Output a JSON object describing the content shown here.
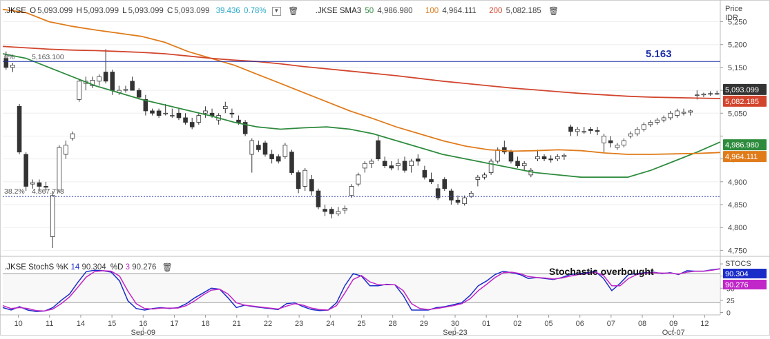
{
  "colors": {
    "candle_up": "#ffffff",
    "candle_down": "#333333",
    "sma50": "#2e8b3d",
    "sma100": "#e07b1a",
    "sma200": "#d2452d",
    "fib_line": "#1f2fa8",
    "fib_dotted": "#3d4db0",
    "stoch_k": "#1a2cc8",
    "stoch_d": "#c026c8",
    "stoch_level": "#555555"
  },
  "legend": {
    "symbol": ".JKSE",
    "open_label": "O",
    "open": "5,093.099",
    "high_label": "H",
    "high": "5,093.099",
    "low_label": "L",
    "low": "5,093.099",
    "close_label": "C",
    "close": "5,093.099",
    "change": "39.436",
    "change_pct": "0.78%",
    "sma_symbol": ".JKSE SMA3",
    "sma_p1": "50",
    "sma_v1": "4,986.980",
    "sma_p2": "100",
    "sma_v2": "4,964.111",
    "sma_p3": "200",
    "sma_v3": "5,082.185",
    "collapse_icon": "chevron-down-icon",
    "delete_icon": "trash-icon"
  },
  "stoch_legend": {
    "name": ".JKSE StochS %K",
    "k_period": "14",
    "k_value": "90.304",
    "d_label": "%D",
    "d_period": "3",
    "d_value": "90.276",
    "delete_icon": "trash-icon"
  },
  "chart_data": [
    {
      "type": "candlestick",
      "title": "",
      "yaxis_title": "Price",
      "yaxis_unit": "IDR",
      "ylim": [
        4740,
        5290
      ],
      "y_ticks": [
        4750,
        4800,
        4850,
        4900,
        4950,
        5000,
        5050,
        5100,
        5150,
        5200,
        5250
      ],
      "y_tick_labels": [
        "4,750",
        "4,800",
        "4,850",
        "4,900",
        "4,950",
        "",
        "5,050",
        "5,100",
        "5,150",
        "5,200",
        "5,250"
      ],
      "x_tick_labels": [
        "10",
        "11",
        "14",
        "15",
        "16",
        "17",
        "18",
        "21",
        "22",
        "23",
        "24",
        "25",
        "28",
        "29",
        "30",
        "01",
        "02",
        "05",
        "06",
        "07",
        "08",
        "09",
        "12"
      ],
      "x_month_labels": [
        {
          "after_tick": "16",
          "label": "Sep-09"
        },
        {
          "after_tick": "30",
          "label": "Sep-23"
        },
        {
          "after_tick": "09",
          "label": "Oct-07"
        }
      ],
      "candle_interval": "2H",
      "candles": [
        [
          5170,
          5185,
          5145,
          5150
        ],
        [
          5150,
          5160,
          5140,
          5155
        ],
        [
          5065,
          5070,
          4960,
          4965
        ],
        [
          4960,
          4965,
          4880,
          4890
        ],
        [
          4895,
          4905,
          4885,
          4898
        ],
        [
          4898,
          4905,
          4880,
          4890
        ],
        [
          4890,
          4900,
          4880,
          4888
        ],
        [
          4780,
          4880,
          4755,
          4870
        ],
        [
          4880,
          4980,
          4875,
          4975
        ],
        [
          4960,
          4990,
          4950,
          4980
        ],
        [
          4995,
          5010,
          4990,
          5005
        ],
        [
          5080,
          5125,
          5075,
          5120
        ],
        [
          5115,
          5130,
          5100,
          5120
        ],
        [
          5110,
          5130,
          5105,
          5122
        ],
        [
          5120,
          5135,
          5110,
          5130
        ],
        [
          5140,
          5190,
          5115,
          5120
        ],
        [
          5140,
          5145,
          5090,
          5100
        ],
        [
          5095,
          5110,
          5090,
          5100
        ],
        [
          5100,
          5110,
          5095,
          5102
        ],
        [
          5120,
          5130,
          5100,
          5100
        ],
        [
          5100,
          5105,
          5080,
          5085
        ],
        [
          5080,
          5090,
          5045,
          5055
        ],
        [
          5055,
          5060,
          5045,
          5050
        ],
        [
          5055,
          5060,
          5040,
          5045
        ],
        [
          5050,
          5070,
          5045,
          5050
        ],
        [
          5045,
          5060,
          5040,
          5045
        ],
        [
          5050,
          5060,
          5035,
          5040
        ],
        [
          5040,
          5050,
          5025,
          5030
        ],
        [
          5030,
          5040,
          5015,
          5020
        ],
        [
          5030,
          5050,
          5025,
          5045
        ],
        [
          5050,
          5065,
          5040,
          5055
        ],
        [
          5050,
          5060,
          5040,
          5045
        ],
        [
          5035,
          5050,
          5025,
          5045
        ],
        [
          5060,
          5075,
          5050,
          5065
        ],
        [
          5050,
          5060,
          5040,
          5048
        ],
        [
          5035,
          5045,
          5025,
          5030
        ],
        [
          5030,
          5035,
          5000,
          5005
        ],
        [
          4960,
          4995,
          4920,
          4990
        ],
        [
          4980,
          4990,
          4965,
          4970
        ],
        [
          4985,
          4990,
          4955,
          4960
        ],
        [
          4960,
          4970,
          4940,
          4950
        ],
        [
          4955,
          4960,
          4940,
          4945
        ],
        [
          4955,
          4985,
          4950,
          4980
        ],
        [
          4965,
          4970,
          4915,
          4920
        ],
        [
          4920,
          4925,
          4875,
          4885
        ],
        [
          4890,
          4930,
          4880,
          4925
        ],
        [
          4905,
          4915,
          4870,
          4880
        ],
        [
          4880,
          4885,
          4840,
          4845
        ],
        [
          4840,
          4850,
          4825,
          4835
        ],
        [
          4840,
          4845,
          4820,
          4830
        ],
        [
          4830,
          4845,
          4825,
          4835
        ],
        [
          4838,
          4848,
          4830,
          4842
        ],
        [
          4870,
          4895,
          4865,
          4890
        ],
        [
          4895,
          4920,
          4890,
          4915
        ],
        [
          4930,
          4945,
          4920,
          4940
        ],
        [
          4940,
          4950,
          4930,
          4945
        ],
        [
          4990,
          5000,
          4945,
          4950
        ],
        [
          4945,
          4955,
          4930,
          4935
        ],
        [
          4935,
          4945,
          4925,
          4930
        ],
        [
          4935,
          4950,
          4925,
          4940
        ],
        [
          4945,
          4955,
          4920,
          4925
        ],
        [
          4935,
          4950,
          4920,
          4945
        ],
        [
          4950,
          4960,
          4935,
          4945
        ],
        [
          4925,
          4935,
          4905,
          4910
        ],
        [
          4905,
          4920,
          4895,
          4900
        ],
        [
          4885,
          4895,
          4860,
          4865
        ],
        [
          4905,
          4910,
          4880,
          4885
        ],
        [
          4880,
          4885,
          4850,
          4860
        ],
        [
          4860,
          4870,
          4850,
          4855
        ],
        [
          4852,
          4870,
          4848,
          4865
        ],
        [
          4868,
          4880,
          4865,
          4875
        ],
        [
          4905,
          4915,
          4890,
          4910
        ],
        [
          4910,
          4920,
          4905,
          4915
        ],
        [
          4920,
          4950,
          4915,
          4945
        ],
        [
          4945,
          4975,
          4940,
          4970
        ],
        [
          4975,
          4990,
          4960,
          4965
        ],
        [
          4965,
          4970,
          4940,
          4945
        ],
        [
          4945,
          4955,
          4930,
          4935
        ],
        [
          4935,
          4945,
          4925,
          4940
        ],
        [
          4915,
          4930,
          4910,
          4925
        ],
        [
          4950,
          4970,
          4945,
          4955
        ],
        [
          4955,
          4960,
          4945,
          4950
        ],
        [
          4950,
          4958,
          4942,
          4948
        ],
        [
          4950,
          4960,
          4945,
          4955
        ],
        [
          4955,
          4962,
          4948,
          4958
        ],
        [
          5020,
          5025,
          5000,
          5010
        ],
        [
          5010,
          5020,
          5000,
          5015
        ],
        [
          5010,
          5020,
          5005,
          5010
        ],
        [
          5015,
          5020,
          5005,
          5012
        ],
        [
          5012,
          5020,
          5002,
          5010
        ],
        [
          4985,
          5005,
          4965,
          5000
        ],
        [
          4990,
          5000,
          4975,
          4985
        ],
        [
          4975,
          4985,
          4970,
          4980
        ],
        [
          4980,
          4995,
          4975,
          4990
        ],
        [
          5000,
          5010,
          4995,
          5005
        ],
        [
          5005,
          5020,
          5000,
          5015
        ],
        [
          5015,
          5030,
          5010,
          5025
        ],
        [
          5025,
          5035,
          5020,
          5030
        ],
        [
          5030,
          5040,
          5025,
          5035
        ],
        [
          5035,
          5045,
          5030,
          5040
        ],
        [
          5040,
          5055,
          5035,
          5050
        ],
        [
          5045,
          5060,
          5040,
          5055
        ],
        [
          5050,
          5060,
          5045,
          5052
        ],
        [
          5052,
          5058,
          5045,
          5055
        ],
        [
          5090,
          5100,
          5080,
          5090
        ],
        [
          5090,
          5095,
          5085,
          5092
        ],
        [
          5092,
          5098,
          5088,
          5093
        ],
        [
          5093,
          5099,
          5090,
          5093
        ]
      ],
      "series": [
        {
          "name": "SMA 50",
          "color": "#2e8b3d",
          "values": [
            5180,
            5170,
            5150,
            5130,
            5110,
            5095,
            5080,
            5068,
            5056,
            5044,
            5030,
            5020,
            5015,
            5018,
            5020,
            5015,
            5005,
            4990,
            4975,
            4960,
            4950,
            4940,
            4930,
            4920,
            4915,
            4910,
            4910,
            4910,
            4925,
            4945,
            4965,
            4987
          ]
        },
        {
          "name": "SMA 100",
          "color": "#e07b1a",
          "values": [
            5277,
            5270,
            5250,
            5240,
            5232,
            5225,
            5218,
            5205,
            5185,
            5170,
            5155,
            5135,
            5115,
            5095,
            5075,
            5055,
            5038,
            5020,
            5005,
            4990,
            4978,
            4970,
            4967,
            4968,
            4970,
            4968,
            4963,
            4960,
            4960,
            4961,
            4962,
            4964
          ]
        },
        {
          "name": "SMA 200",
          "color": "#d2452d",
          "values": [
            5196,
            5193,
            5190,
            5188,
            5187,
            5185,
            5183,
            5180,
            5175,
            5170,
            5166,
            5163,
            5158,
            5152,
            5147,
            5142,
            5137,
            5132,
            5126,
            5120,
            5115,
            5110,
            5105,
            5101,
            5097,
            5093,
            5090,
            5087,
            5085,
            5084,
            5083,
            5082
          ]
        }
      ],
      "annotations": [
        {
          "label": "0%",
          "value": "5,163.100",
          "y": 5163.1,
          "style": "solid"
        },
        {
          "label": "38.2%",
          "value": "4,867.773",
          "y": 4867.773,
          "style": "dotted"
        },
        {
          "text": "5.163",
          "y": 5163.1
        }
      ],
      "price_tags": [
        {
          "value": 5093.099,
          "text": "5,093.099",
          "color": "#333333"
        },
        {
          "value": 5082.185,
          "text": "5,082.185",
          "color": "#d2452d"
        },
        {
          "value": 4986.98,
          "text": "4,986.980",
          "color": "#2e8b3d"
        },
        {
          "value": 4964.111,
          "text": "4,964.111",
          "color": "#e07b1a"
        }
      ]
    },
    {
      "type": "line",
      "title": "Stochastic overbought",
      "yaxis_title": "STOCS",
      "ylim": [
        -5,
        110
      ],
      "y_ticks": [
        0,
        25,
        50,
        75,
        100
      ],
      "levels": [
        20,
        80
      ],
      "series": [
        {
          "name": "%K",
          "color": "#1a2cc8",
          "values": [
            10,
            5,
            12,
            5,
            2,
            3,
            10,
            25,
            38,
            62,
            84,
            87,
            86,
            83,
            65,
            24,
            8,
            5,
            8,
            10,
            8,
            10,
            18,
            30,
            40,
            50,
            48,
            30,
            10,
            15,
            12,
            10,
            8,
            6,
            18,
            20,
            12,
            6,
            4,
            5,
            20,
            55,
            80,
            75,
            55,
            55,
            58,
            57,
            35,
            5,
            5,
            5,
            10,
            12,
            16,
            20,
            35,
            55,
            65,
            78,
            85,
            82,
            78,
            70,
            72,
            70,
            68,
            72,
            78,
            80,
            82,
            85,
            70,
            45,
            60,
            78,
            80,
            82,
            83,
            80,
            82,
            78,
            86,
            85,
            85,
            88,
            90
          ]
        },
        {
          "name": "%D",
          "color": "#c026c8",
          "values": [
            14,
            8,
            10,
            8,
            4,
            3,
            7,
            18,
            32,
            52,
            73,
            84,
            86,
            85,
            75,
            44,
            18,
            8,
            7,
            9,
            9,
            9,
            14,
            24,
            36,
            46,
            48,
            38,
            20,
            15,
            13,
            11,
            9,
            7,
            13,
            18,
            15,
            9,
            6,
            5,
            14,
            40,
            68,
            76,
            63,
            57,
            57,
            57,
            45,
            18,
            8,
            6,
            8,
            11,
            14,
            18,
            28,
            45,
            58,
            72,
            82,
            83,
            80,
            74,
            72,
            71,
            69,
            71,
            75,
            78,
            80,
            83,
            76,
            55,
            55,
            70,
            78,
            81,
            82,
            81,
            81,
            79,
            83,
            85,
            85,
            87,
            90
          ]
        }
      ],
      "price_tags": [
        {
          "value": 90.304,
          "text": "90.304",
          "color": "#1a2cc8"
        },
        {
          "value": 90.276,
          "text": "90.276",
          "color": "#c026c8"
        }
      ]
    }
  ]
}
